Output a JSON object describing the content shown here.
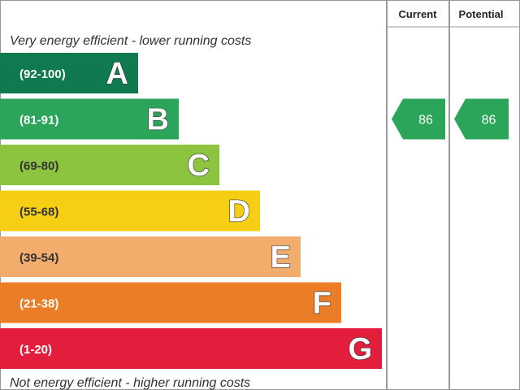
{
  "chart_data": {
    "type": "bar",
    "header": {
      "current_label": "Current",
      "potential_label": "Potential"
    },
    "top_caption": "Very energy efficient - lower running costs",
    "bottom_caption": "Not energy efficient - higher running costs",
    "bands": [
      {
        "letter": "A",
        "range": "(92-100)",
        "color": "#0f7a4f",
        "range_text_color": "#ffffff"
      },
      {
        "letter": "B",
        "range": "(81-91)",
        "color": "#2ba55a",
        "range_text_color": "#ffffff"
      },
      {
        "letter": "C",
        "range": "(69-80)",
        "color": "#8dc43f",
        "range_text_color": "#333333"
      },
      {
        "letter": "D",
        "range": "(55-68)",
        "color": "#f6cf14",
        "range_text_color": "#333333"
      },
      {
        "letter": "E",
        "range": "(39-54)",
        "color": "#f2ad6c",
        "range_text_color": "#333333"
      },
      {
        "letter": "F",
        "range": "(21-38)",
        "color": "#ea7d26",
        "range_text_color": "#ffffff"
      },
      {
        "letter": "G",
        "range": "(1-20)",
        "color": "#e31d3c",
        "range_text_color": "#ffffff"
      }
    ],
    "current": {
      "value": 86,
      "label": "86",
      "band": "B",
      "color": "#2ba55a"
    },
    "potential": {
      "value": 86,
      "label": "86",
      "band": "B",
      "color": "#2ba55a"
    }
  }
}
